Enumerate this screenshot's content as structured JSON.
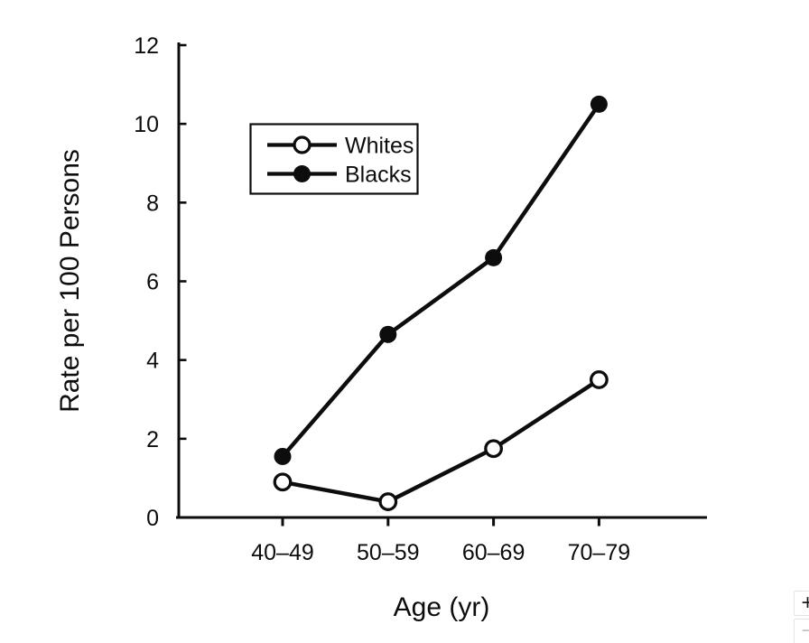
{
  "figure": {
    "background": "#ffffff",
    "ink": "#0d0d0d"
  },
  "chart_data": {
    "type": "line",
    "title": "",
    "xlabel": "Age (yr)",
    "ylabel": "Rate per 100 Persons",
    "categories": [
      "40–49",
      "50–59",
      "60–69",
      "70–79"
    ],
    "series": [
      {
        "name": "Whites",
        "marker": "open-circle",
        "values": [
          0.9,
          0.4,
          1.75,
          3.5
        ]
      },
      {
        "name": "Blacks",
        "marker": "filled-circle",
        "values": [
          1.55,
          4.65,
          6.6,
          10.5
        ]
      }
    ],
    "ylim": [
      0,
      12
    ],
    "yticks": [
      0,
      2,
      4,
      6,
      8,
      10,
      12
    ],
    "grid": false,
    "legend": {
      "position": "upper-left-inside",
      "entries": [
        "Whites",
        "Blacks"
      ]
    }
  },
  "zoom_control": {
    "zoom_in": "+",
    "zoom_out": "−"
  }
}
